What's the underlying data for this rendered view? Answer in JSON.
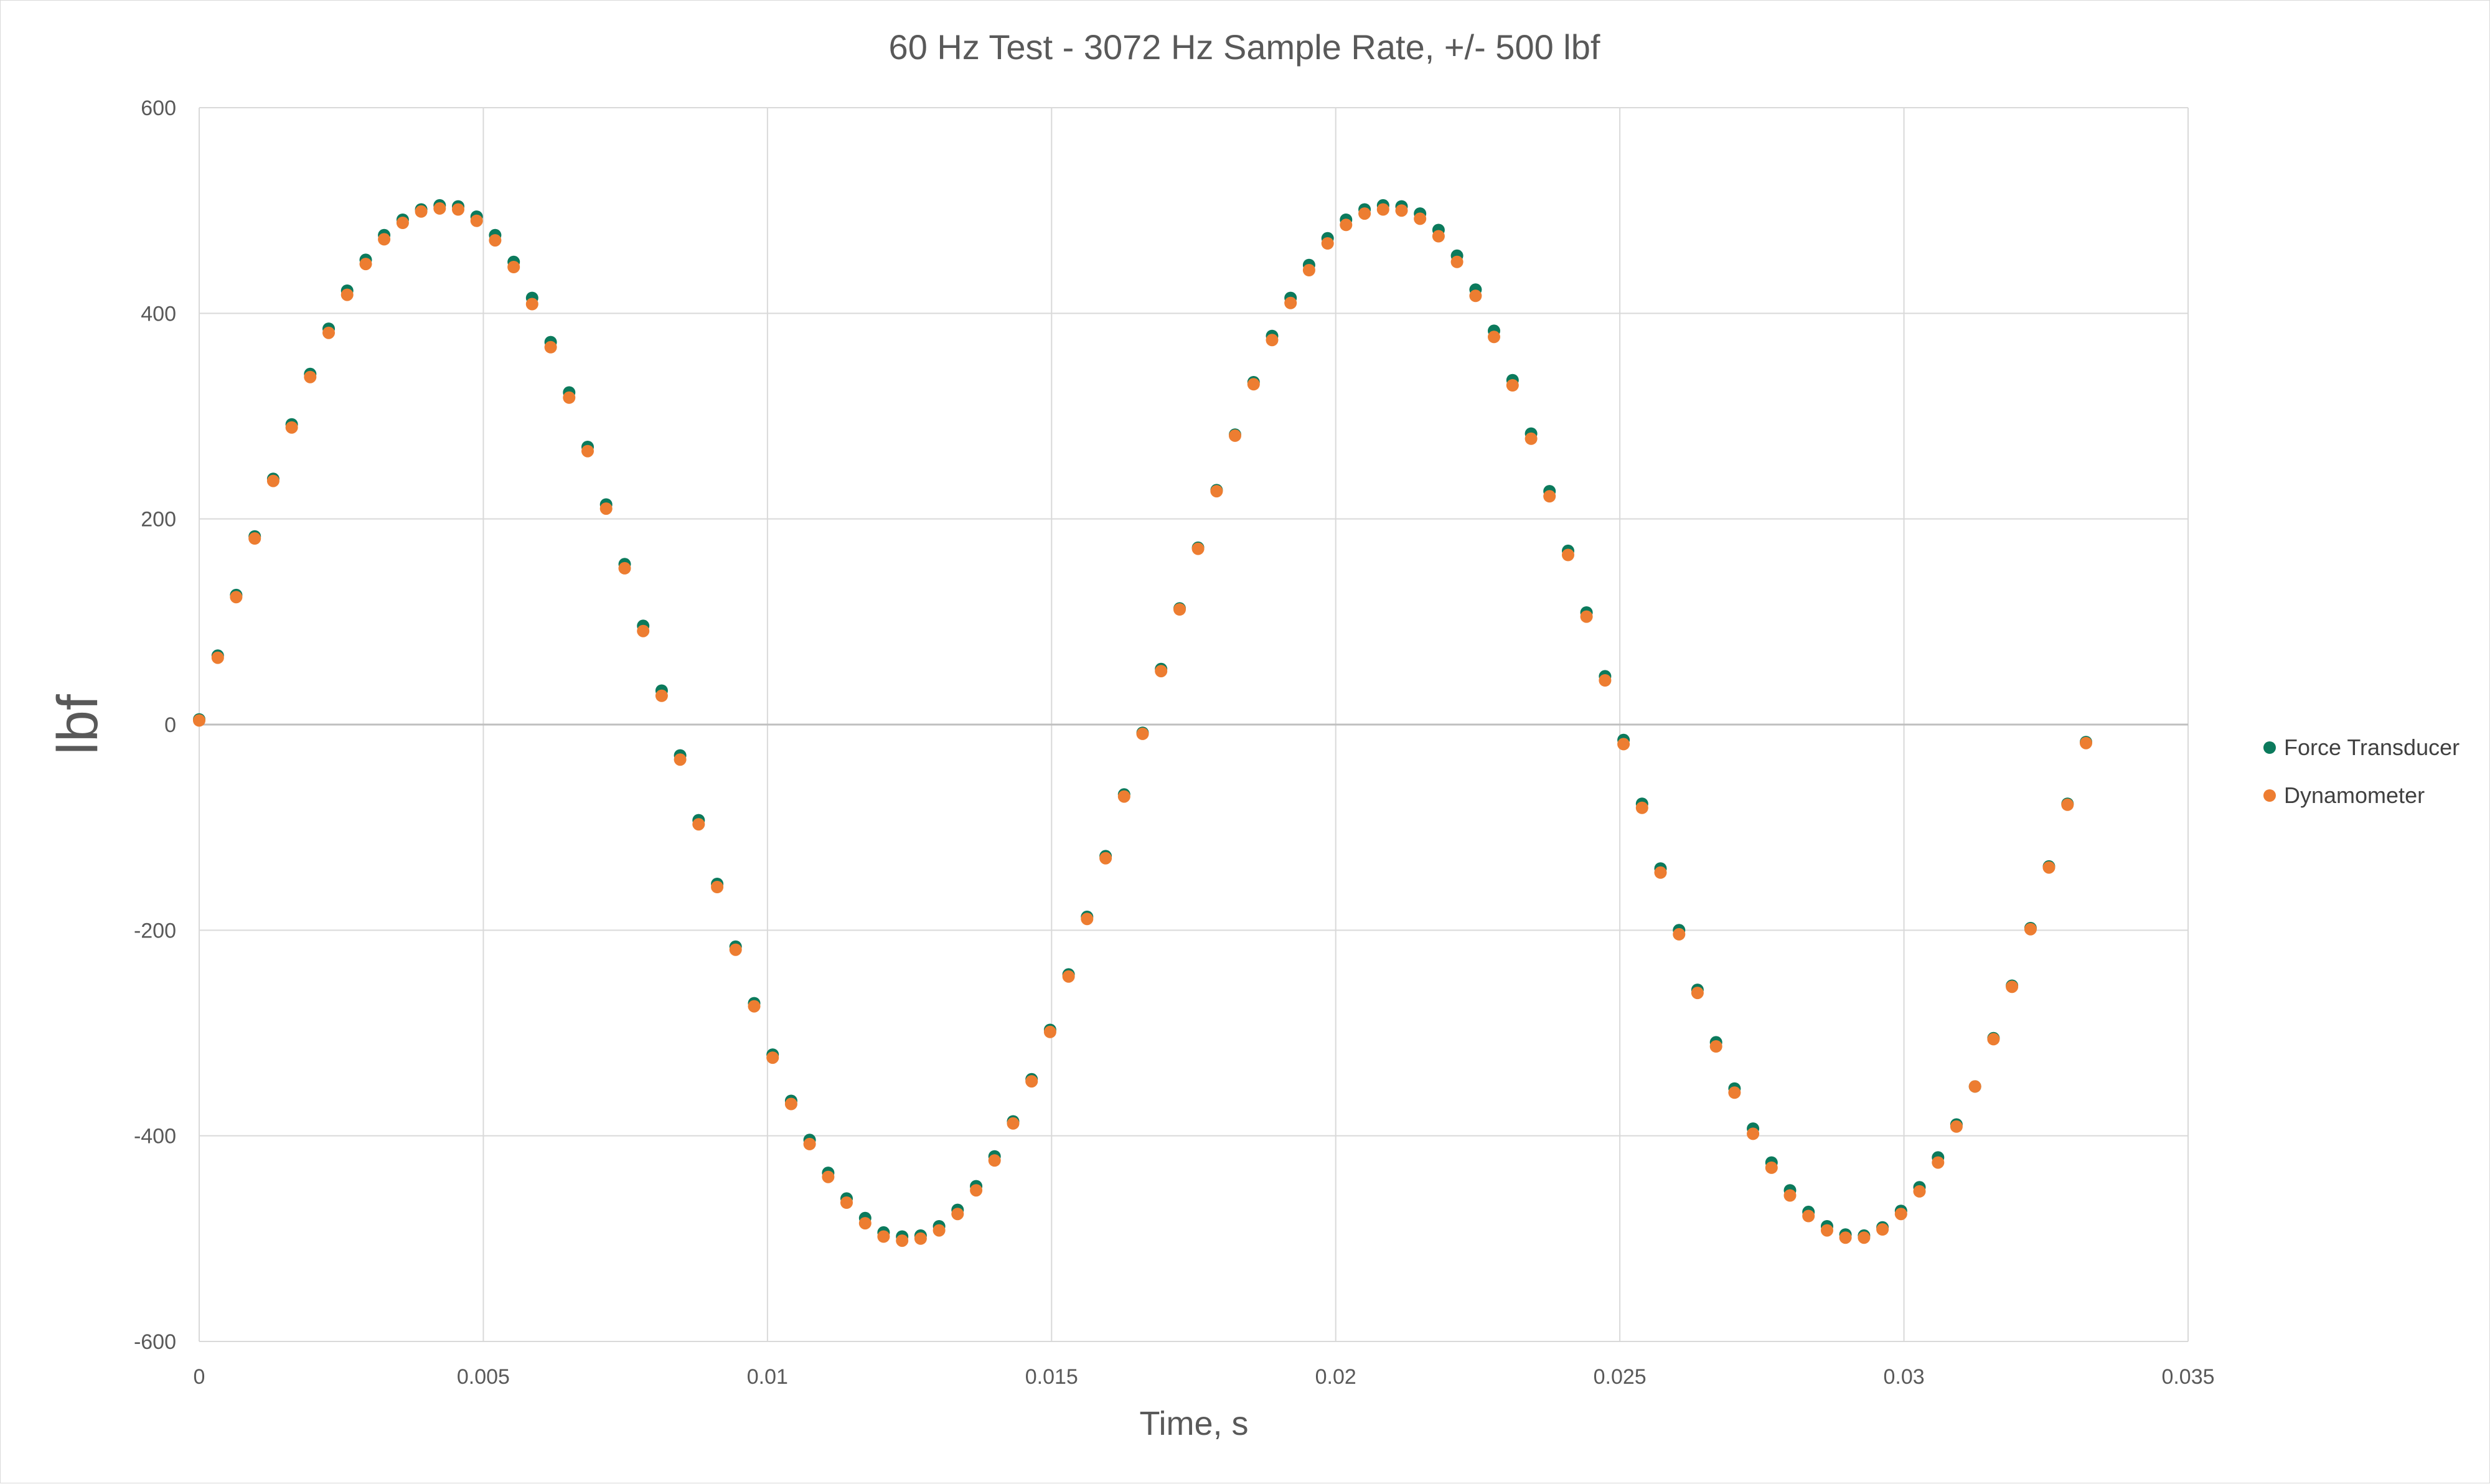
{
  "chart_data": {
    "type": "scatter",
    "title": "60 Hz Test - 3072 Hz Sample Rate, +/- 500 lbf",
    "xlabel": "Time, s",
    "ylabel": "lbf",
    "xlim": [
      0,
      0.035
    ],
    "ylim": [
      -600,
      600
    ],
    "x_ticks": [
      0,
      0.005,
      0.01,
      0.015,
      0.02,
      0.025,
      0.03,
      0.035
    ],
    "x_tick_labels": [
      "0",
      "0.005",
      "0.01",
      "0.015",
      "0.02",
      "0.025",
      "0.03",
      "0.035"
    ],
    "y_ticks": [
      -600,
      -400,
      -200,
      0,
      200,
      400,
      600
    ],
    "y_tick_labels": [
      "-600",
      "-400",
      "-200",
      "0",
      "200",
      "400",
      "600"
    ],
    "grid": true,
    "legend_position": "right",
    "series": [
      {
        "name": "Force Transducer",
        "color": "#0b7a5c",
        "x": [
          0,
          0.000326,
          0.000651,
          0.000977,
          0.001302,
          0.001628,
          0.001953,
          0.002279,
          0.002604,
          0.00293,
          0.003255,
          0.003581,
          0.003906,
          0.004232,
          0.004557,
          0.004883,
          0.005208,
          0.005534,
          0.005859,
          0.006185,
          0.00651,
          0.006836,
          0.007161,
          0.007487,
          0.007813,
          0.008138,
          0.008464,
          0.008789,
          0.009115,
          0.00944,
          0.009766,
          0.010091,
          0.010417,
          0.010742,
          0.011068,
          0.011393,
          0.011719,
          0.012044,
          0.01237,
          0.012695,
          0.013021,
          0.013346,
          0.013672,
          0.013997,
          0.014323,
          0.014648,
          0.014974,
          0.015299,
          0.015625,
          0.015951,
          0.016276,
          0.016602,
          0.016927,
          0.017253,
          0.017578,
          0.017904,
          0.018229,
          0.018555,
          0.01888,
          0.019206,
          0.019531,
          0.019857,
          0.020182,
          0.020508,
          0.020833,
          0.021159,
          0.021484,
          0.02181,
          0.022135,
          0.022461,
          0.022786,
          0.023112,
          0.023438,
          0.023763,
          0.024089,
          0.024414,
          0.02474,
          0.025065,
          0.025391,
          0.025716,
          0.026042,
          0.026367,
          0.026693,
          0.027018,
          0.027344,
          0.027669,
          0.027995,
          0.02832,
          0.028646,
          0.028971,
          0.029297,
          0.029622,
          0.029948,
          0.030273,
          0.030599,
          0.030924,
          0.03125,
          0.031576,
          0.031901,
          0.032227,
          0.032552,
          0.032878,
          0.033203
        ],
        "y": [
          5,
          67,
          126,
          183,
          239,
          292,
          341,
          385,
          422,
          452,
          476,
          491,
          501,
          505,
          504,
          494,
          476,
          450,
          415,
          372,
          323,
          270,
          214,
          156,
          96,
          33,
          -30,
          -93,
          -155,
          -216,
          -271,
          -321,
          -366,
          -404,
          -436,
          -461,
          -480,
          -494,
          -498,
          -497,
          -488,
          -472,
          -449,
          -420,
          -386,
          -345,
          -297,
          -243,
          -187,
          -128,
          -68,
          -8,
          54,
          113,
          172,
          228,
          282,
          333,
          378,
          415,
          447,
          473,
          491,
          501,
          505,
          504,
          497,
          481,
          456,
          423,
          383,
          335,
          283,
          227,
          169,
          109,
          47,
          -15,
          -77,
          -140,
          -200,
          -258,
          -309,
          -354,
          -393,
          -426,
          -453,
          -474,
          -488,
          -496,
          -497,
          -489,
          -473,
          -450,
          -421,
          -389,
          -352,
          -305,
          -254,
          -198,
          -138,
          -77,
          -17
        ]
      },
      {
        "name": "Dynamometer",
        "color": "#ed7d31",
        "x": [
          0,
          0.000326,
          0.000651,
          0.000977,
          0.001302,
          0.001628,
          0.001953,
          0.002279,
          0.002604,
          0.00293,
          0.003255,
          0.003581,
          0.003906,
          0.004232,
          0.004557,
          0.004883,
          0.005208,
          0.005534,
          0.005859,
          0.006185,
          0.00651,
          0.006836,
          0.007161,
          0.007487,
          0.007813,
          0.008138,
          0.008464,
          0.008789,
          0.009115,
          0.00944,
          0.009766,
          0.010091,
          0.010417,
          0.010742,
          0.011068,
          0.011393,
          0.011719,
          0.012044,
          0.01237,
          0.012695,
          0.013021,
          0.013346,
          0.013672,
          0.013997,
          0.014323,
          0.014648,
          0.014974,
          0.015299,
          0.015625,
          0.015951,
          0.016276,
          0.016602,
          0.016927,
          0.017253,
          0.017578,
          0.017904,
          0.018229,
          0.018555,
          0.01888,
          0.019206,
          0.019531,
          0.019857,
          0.020182,
          0.020508,
          0.020833,
          0.021159,
          0.021484,
          0.02181,
          0.022135,
          0.022461,
          0.022786,
          0.023112,
          0.023438,
          0.023763,
          0.024089,
          0.024414,
          0.02474,
          0.025065,
          0.025391,
          0.025716,
          0.026042,
          0.026367,
          0.026693,
          0.027018,
          0.027344,
          0.027669,
          0.027995,
          0.02832,
          0.028646,
          0.028971,
          0.029297,
          0.029622,
          0.029948,
          0.030273,
          0.030599,
          0.030924,
          0.03125,
          0.031576,
          0.031901,
          0.032227,
          0.032552,
          0.032878,
          0.033203
        ],
        "y": [
          4,
          65,
          124,
          181,
          237,
          289,
          338,
          381,
          418,
          448,
          472,
          488,
          499,
          502,
          501,
          490,
          471,
          445,
          409,
          367,
          318,
          266,
          210,
          152,
          91,
          28,
          -34,
          -97,
          -158,
          -219,
          -274,
          -324,
          -369,
          -408,
          -440,
          -465,
          -485,
          -498,
          -502,
          -500,
          -492,
          -476,
          -453,
          -424,
          -388,
          -347,
          -299,
          -245,
          -189,
          -130,
          -70,
          -9,
          52,
          112,
          171,
          227,
          281,
          331,
          374,
          410,
          442,
          468,
          486,
          497,
          501,
          500,
          492,
          475,
          450,
          417,
          377,
          330,
          278,
          222,
          165,
          105,
          43,
          -19,
          -81,
          -144,
          -204,
          -261,
          -313,
          -358,
          -398,
          -431,
          -458,
          -478,
          -492,
          -499,
          -499,
          -491,
          -476,
          -454,
          -426,
          -391,
          -352,
          -306,
          -255,
          -199,
          -139,
          -78,
          -18
        ]
      }
    ]
  }
}
